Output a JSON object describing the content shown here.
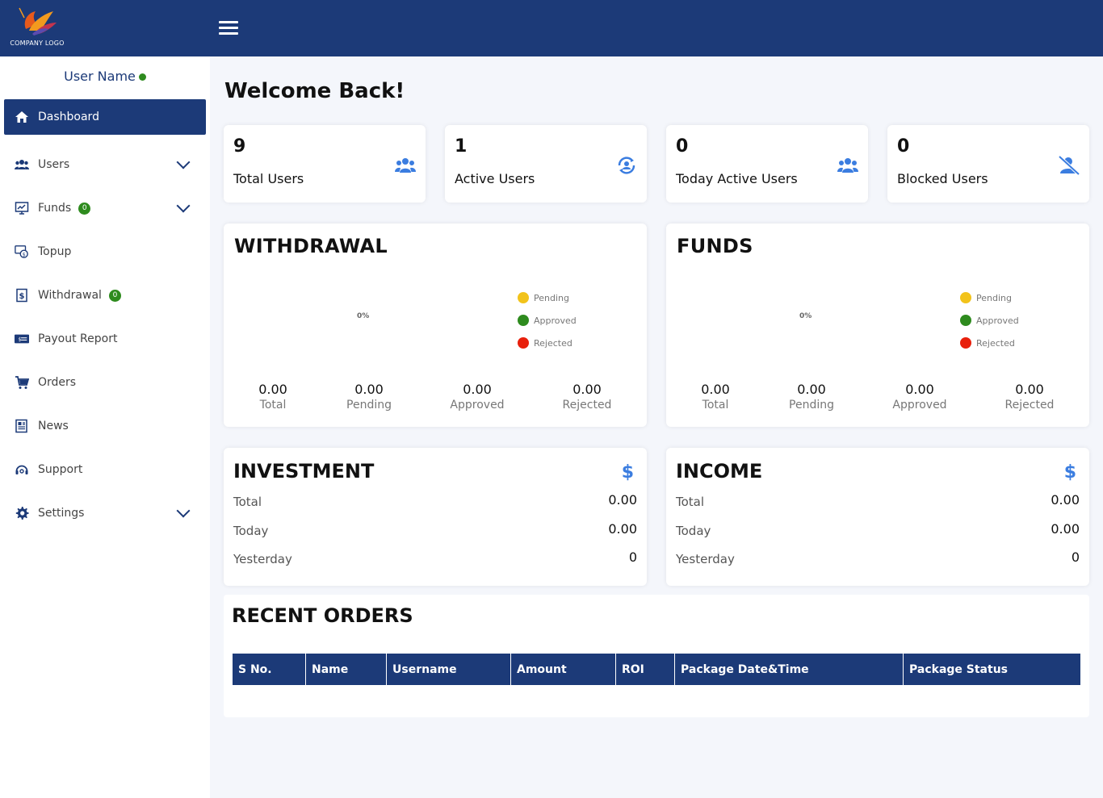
{
  "header": {
    "logo_text": "COMPANY LOGO"
  },
  "sidebar": {
    "user_name": "User Name",
    "items": [
      {
        "label": "Dashboard",
        "icon": "home-icon",
        "active": true
      },
      {
        "label": "Users",
        "icon": "users-icon",
        "chevron": true
      },
      {
        "label": "Funds",
        "icon": "funds-icon",
        "badge": "0",
        "chevron": true
      },
      {
        "label": "Topup",
        "icon": "topup-icon"
      },
      {
        "label": "Withdrawal",
        "icon": "withdrawal-icon",
        "badge": "0"
      },
      {
        "label": "Payout Report",
        "icon": "payout-icon"
      },
      {
        "label": "Orders",
        "icon": "cart-icon"
      },
      {
        "label": "News",
        "icon": "news-icon"
      },
      {
        "label": "Support",
        "icon": "support-icon"
      },
      {
        "label": "Settings",
        "icon": "gear-icon",
        "chevron": true
      }
    ]
  },
  "main": {
    "welcome": "Welcome Back!",
    "stats": [
      {
        "value": "9",
        "label": "Total Users",
        "icon": "users-icon"
      },
      {
        "value": "1",
        "label": "Active Users",
        "icon": "active-user-icon"
      },
      {
        "value": "0",
        "label": "Today Active Users",
        "icon": "users-icon"
      },
      {
        "value": "0",
        "label": "Blocked Users",
        "icon": "blocked-user-icon"
      }
    ],
    "withdrawal": {
      "title": "WITHDRAWAL",
      "donut_label": "0%",
      "legend": [
        {
          "label": "Pending",
          "color": "#f2c31b"
        },
        {
          "label": "Approved",
          "color": "#2e8b1e"
        },
        {
          "label": "Rejected",
          "color": "#e8200c"
        }
      ],
      "summary": [
        {
          "value": "0.00",
          "label": "Total"
        },
        {
          "value": "0.00",
          "label": "Pending"
        },
        {
          "value": "0.00",
          "label": "Approved"
        },
        {
          "value": "0.00",
          "label": "Rejected"
        }
      ]
    },
    "funds": {
      "title": "FUNDS",
      "donut_label": "0%",
      "legend": [
        {
          "label": "Pending",
          "color": "#f2c31b"
        },
        {
          "label": "Approved",
          "color": "#2e8b1e"
        },
        {
          "label": "Rejected",
          "color": "#e8200c"
        }
      ],
      "summary": [
        {
          "value": "0.00",
          "label": "Total"
        },
        {
          "value": "0.00",
          "label": "Pending"
        },
        {
          "value": "0.00",
          "label": "Approved"
        },
        {
          "value": "0.00",
          "label": "Rejected"
        }
      ]
    },
    "investment": {
      "title": "INVESTMENT",
      "icon": "dollar-icon",
      "rows": [
        {
          "label": "Total",
          "value": "0.00"
        },
        {
          "label": "Today",
          "value": "0.00"
        },
        {
          "label": "Yesterday",
          "value": "0"
        }
      ]
    },
    "income": {
      "title": "INCOME",
      "icon": "dollar-icon",
      "rows": [
        {
          "label": "Total",
          "value": "0.00"
        },
        {
          "label": "Today",
          "value": "0.00"
        },
        {
          "label": "Yesterday",
          "value": "0"
        }
      ]
    },
    "recent_orders": {
      "title": "RECENT ORDERS",
      "columns": [
        "S No.",
        "Name",
        "Username",
        "Amount",
        "ROI",
        "Package Date&Time",
        "Package Status"
      ]
    }
  },
  "colors": {
    "primary": "#1c3a78",
    "accent": "#3b7de0",
    "online": "#2e8b1e"
  }
}
